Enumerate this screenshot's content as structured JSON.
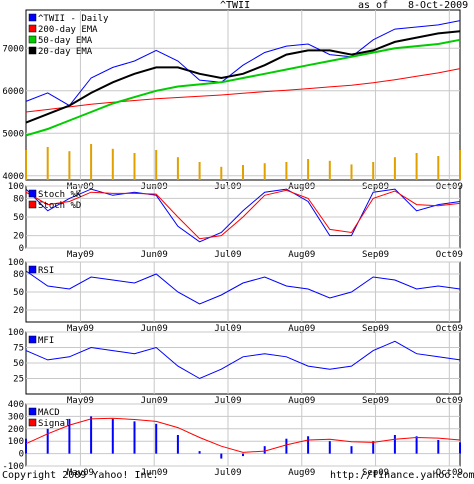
{
  "header": {
    "ticker": "^TWII",
    "as_of": "as of",
    "date": "8-Oct-2009"
  },
  "footer": {
    "copyright": "Copyright 2009 Yahoo! Inc.",
    "url": "http://finance.yahoo.com/"
  },
  "colors": {
    "blue": "#0000ff",
    "red": "#ff0000",
    "green": "#00cc00",
    "black": "#000000",
    "orange": "#e0a000",
    "grid": "#c8c8c8",
    "maroon": "#cc2020"
  },
  "chart_data": [
    {
      "type": "line",
      "panel": "price",
      "x_tick_labels": [
        "May09",
        "Jun09",
        "Jul09",
        "Aug09",
        "Sep09",
        "Oct09"
      ],
      "x_tick_pos": [
        0.13,
        0.3,
        0.47,
        0.64,
        0.81,
        0.98
      ],
      "ylim": [
        3900,
        7900
      ],
      "y_ticks": [
        4000,
        5000,
        6000,
        7000
      ],
      "legend": [
        "^TWII - Daily",
        "200-day EMA",
        "50-day EMA",
        "20-day EMA"
      ],
      "legend_colors": [
        "#0000ff",
        "#ff0000",
        "#00cc00",
        "#000000"
      ],
      "x": [
        0,
        0.05,
        0.1,
        0.15,
        0.2,
        0.25,
        0.3,
        0.35,
        0.4,
        0.45,
        0.5,
        0.55,
        0.6,
        0.65,
        0.7,
        0.75,
        0.8,
        0.85,
        0.9,
        0.95,
        1.0
      ],
      "series": [
        {
          "name": "^TWII - Daily",
          "color": "#0000ff",
          "values": [
            5750,
            5950,
            5650,
            6300,
            6550,
            6700,
            6950,
            6700,
            6250,
            6200,
            6600,
            6900,
            7050,
            7100,
            6850,
            6800,
            7200,
            7450,
            7500,
            7550,
            7650
          ]
        },
        {
          "name": "200-day EMA",
          "color": "#ff0000",
          "values": [
            5500,
            5560,
            5620,
            5680,
            5730,
            5770,
            5810,
            5840,
            5870,
            5900,
            5940,
            5980,
            6010,
            6050,
            6090,
            6130,
            6190,
            6260,
            6340,
            6420,
            6520
          ]
        },
        {
          "name": "50-day EMA",
          "color": "#00cc00",
          "values": [
            4950,
            5100,
            5300,
            5500,
            5700,
            5850,
            6000,
            6100,
            6150,
            6200,
            6300,
            6400,
            6500,
            6600,
            6700,
            6800,
            6900,
            7000,
            7050,
            7100,
            7200
          ]
        },
        {
          "name": "20-day EMA",
          "color": "#000000",
          "values": [
            5250,
            5450,
            5650,
            5950,
            6200,
            6400,
            6550,
            6550,
            6400,
            6300,
            6400,
            6600,
            6850,
            6950,
            6950,
            6850,
            6950,
            7150,
            7250,
            7350,
            7400
          ]
        }
      ],
      "volume": [
        0.5,
        0.55,
        0.48,
        0.6,
        0.52,
        0.45,
        0.5,
        0.38,
        0.3,
        0.22,
        0.25,
        0.28,
        0.3,
        0.35,
        0.32,
        0.26,
        0.3,
        0.38,
        0.45,
        0.4,
        0.5
      ]
    },
    {
      "type": "line",
      "panel": "stochastic",
      "x_tick_labels": [
        "May09",
        "Jun09",
        "Jul09",
        "Aug09",
        "Sep09",
        "Oct09"
      ],
      "ylim": [
        0,
        100
      ],
      "y_ticks": [
        0,
        20,
        50,
        80,
        100
      ],
      "legend": [
        "Stoch %K",
        "Stoch %D"
      ],
      "legend_colors": [
        "#0000ff",
        "#ff0000"
      ],
      "x": [
        0,
        0.05,
        0.1,
        0.15,
        0.2,
        0.25,
        0.3,
        0.35,
        0.4,
        0.45,
        0.5,
        0.55,
        0.6,
        0.65,
        0.7,
        0.75,
        0.8,
        0.85,
        0.9,
        0.95,
        1.0
      ],
      "series": [
        {
          "name": "Stoch %K",
          "color": "#0000ff",
          "values": [
            95,
            60,
            80,
            95,
            85,
            90,
            85,
            35,
            10,
            25,
            60,
            90,
            95,
            75,
            20,
            20,
            90,
            95,
            60,
            70,
            75
          ]
        },
        {
          "name": "Stoch %D",
          "color": "#ff0000",
          "values": [
            90,
            70,
            75,
            90,
            88,
            88,
            87,
            50,
            15,
            20,
            50,
            85,
            93,
            80,
            30,
            25,
            80,
            92,
            70,
            68,
            72
          ]
        }
      ]
    },
    {
      "type": "line",
      "panel": "rsi",
      "x_tick_labels": [
        "May09",
        "Jun09",
        "Jul09",
        "Aug09",
        "Sep09",
        "Oct09"
      ],
      "ylim": [
        0,
        100
      ],
      "y_ticks": [
        20,
        50,
        80,
        100
      ],
      "legend": [
        "RSI"
      ],
      "legend_colors": [
        "#0000ff"
      ],
      "x": [
        0,
        0.05,
        0.1,
        0.15,
        0.2,
        0.25,
        0.3,
        0.35,
        0.4,
        0.45,
        0.5,
        0.55,
        0.6,
        0.65,
        0.7,
        0.75,
        0.8,
        0.85,
        0.9,
        0.95,
        1.0
      ],
      "series": [
        {
          "name": "RSI",
          "color": "#0000ff",
          "values": [
            85,
            60,
            55,
            75,
            70,
            65,
            80,
            50,
            30,
            45,
            65,
            75,
            60,
            55,
            40,
            50,
            75,
            70,
            55,
            60,
            55
          ]
        }
      ]
    },
    {
      "type": "line",
      "panel": "mfi",
      "x_tick_labels": [
        "May09",
        "Jun09",
        "Jul09",
        "Aug09",
        "Sep09",
        "Oct09"
      ],
      "ylim": [
        0,
        100
      ],
      "y_ticks": [
        25,
        50,
        75,
        100
      ],
      "legend": [
        "MFI"
      ],
      "legend_colors": [
        "#0000ff"
      ],
      "x": [
        0,
        0.05,
        0.1,
        0.15,
        0.2,
        0.25,
        0.3,
        0.35,
        0.4,
        0.45,
        0.5,
        0.55,
        0.6,
        0.65,
        0.7,
        0.75,
        0.8,
        0.85,
        0.9,
        0.95,
        1.0
      ],
      "series": [
        {
          "name": "MFI",
          "color": "#0000ff",
          "values": [
            70,
            55,
            60,
            75,
            70,
            65,
            75,
            45,
            25,
            40,
            60,
            65,
            60,
            45,
            40,
            45,
            70,
            85,
            65,
            60,
            55
          ]
        }
      ]
    },
    {
      "type": "bar",
      "panel": "macd",
      "x_tick_labels": [
        "May09",
        "Jun09",
        "Jul09",
        "Aug09",
        "Sep09",
        "Oct09"
      ],
      "ylim": [
        -100,
        400
      ],
      "y_ticks": [
        -100,
        0,
        100,
        200,
        300,
        400
      ],
      "legend": [
        "MACD",
        "Signal"
      ],
      "legend_colors": [
        "#0000ff",
        "#ff0000"
      ],
      "x": [
        0,
        0.05,
        0.1,
        0.15,
        0.2,
        0.25,
        0.3,
        0.35,
        0.4,
        0.45,
        0.5,
        0.55,
        0.6,
        0.65,
        0.7,
        0.75,
        0.8,
        0.85,
        0.9,
        0.95,
        1.0
      ],
      "series": [
        {
          "name": "MACD",
          "color": "#0000ff",
          "values": [
            120,
            200,
            280,
            300,
            280,
            260,
            240,
            150,
            20,
            -40,
            -20,
            60,
            120,
            140,
            100,
            60,
            100,
            150,
            140,
            110,
            90
          ]
        },
        {
          "name": "Signal",
          "color": "#ff0000",
          "values": [
            80,
            160,
            230,
            280,
            285,
            275,
            260,
            210,
            130,
            60,
            10,
            20,
            70,
            110,
            115,
            95,
            90,
            115,
            130,
            125,
            110
          ]
        }
      ]
    }
  ]
}
